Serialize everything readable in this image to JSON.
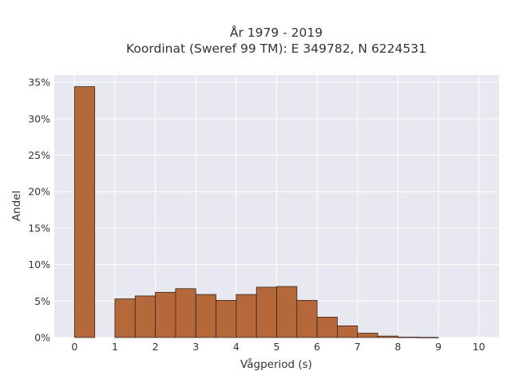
{
  "chart_data": {
    "type": "bar",
    "title_line1": "År 1979 - 2019",
    "title_line2": "Koordinat (Sweref 99 TM): E 349782, N 6224531",
    "xlabel": "Vågperiod (s)",
    "ylabel": "Andel",
    "xlim": [
      -0.5,
      10.5
    ],
    "ylim": [
      0,
      0.36
    ],
    "x_ticks": [
      0,
      1,
      2,
      3,
      4,
      5,
      6,
      7,
      8,
      9,
      10
    ],
    "y_ticks": [
      0,
      0.05,
      0.1,
      0.15,
      0.2,
      0.25,
      0.3,
      0.35
    ],
    "y_tick_labels": [
      "0%",
      "5%",
      "10%",
      "15%",
      "20%",
      "25%",
      "30%",
      "35%"
    ],
    "bin_width": 0.5,
    "bins": [
      {
        "start": 0.0,
        "value": 0.344
      },
      {
        "start": 0.5,
        "value": 0.0
      },
      {
        "start": 1.0,
        "value": 0.053
      },
      {
        "start": 1.5,
        "value": 0.057
      },
      {
        "start": 2.0,
        "value": 0.062
      },
      {
        "start": 2.5,
        "value": 0.067
      },
      {
        "start": 3.0,
        "value": 0.059
      },
      {
        "start": 3.5,
        "value": 0.051
      },
      {
        "start": 4.0,
        "value": 0.059
      },
      {
        "start": 4.5,
        "value": 0.069
      },
      {
        "start": 5.0,
        "value": 0.07
      },
      {
        "start": 5.5,
        "value": 0.051
      },
      {
        "start": 6.0,
        "value": 0.028
      },
      {
        "start": 6.5,
        "value": 0.016
      },
      {
        "start": 7.0,
        "value": 0.006
      },
      {
        "start": 7.5,
        "value": 0.002
      },
      {
        "start": 8.0,
        "value": 0.0005
      },
      {
        "start": 8.5,
        "value": 0.0002
      }
    ],
    "bar_color": "#b5693a",
    "bar_edge_color": "#3a2418",
    "plot_bg": "#e8e8f0",
    "grid": true,
    "grid_color": "#ffffff"
  }
}
